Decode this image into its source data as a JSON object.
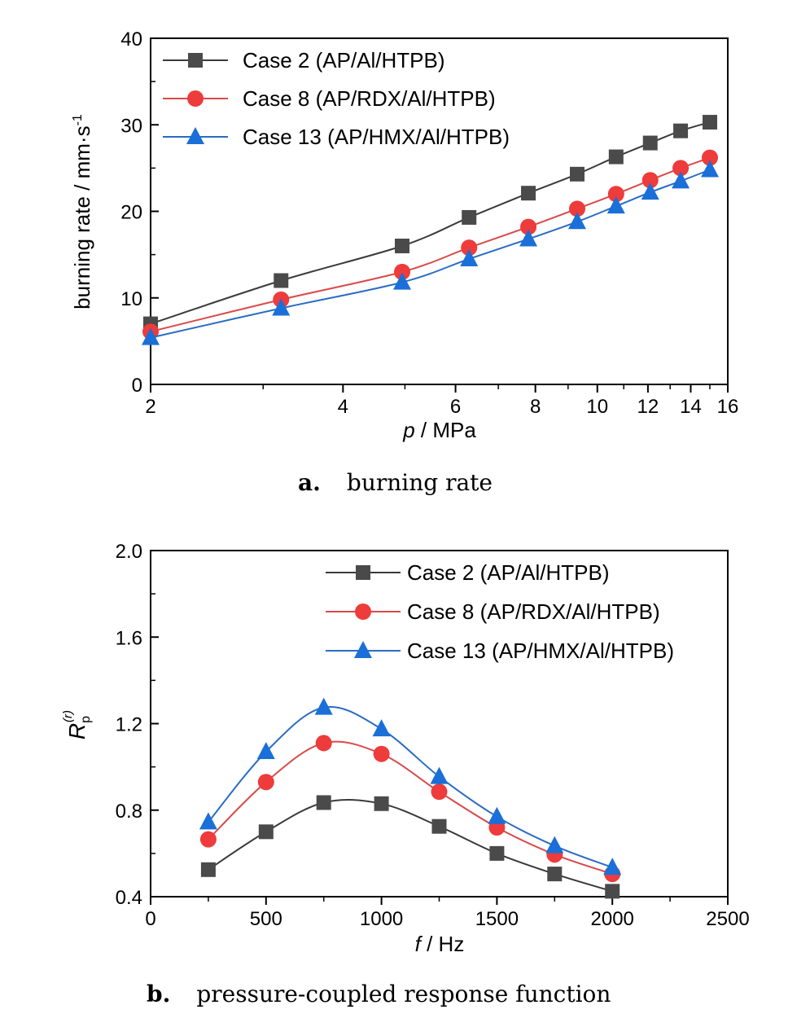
{
  "colors": {
    "case2": "#4a4a4a",
    "case8": "#ee3b3b",
    "case13": "#1a6fd8",
    "case2_line": "#3a3a3a",
    "case8_line": "#d84a4a",
    "case13_line": "#2a6cc4"
  },
  "chart_data": [
    {
      "type": "line",
      "caption_letter": "a.",
      "caption_text": "burning rate",
      "xlabel_var": "p",
      "xlabel_unit": " / MPa",
      "ylabel": "burning rate / mm·s",
      "ylabel_sup": "-1",
      "x_scale": "log",
      "xlim": [
        2,
        16
      ],
      "ylim": [
        0,
        40
      ],
      "x_ticks": [
        2,
        4,
        6,
        8,
        10,
        12,
        14,
        16
      ],
      "x_tick_labels": [
        "2",
        "4",
        "6",
        "8",
        "10",
        "12",
        "14",
        "16"
      ],
      "y_ticks": [
        0,
        10,
        20,
        30,
        40
      ],
      "y_tick_labels": [
        "0",
        "10",
        "20",
        "30",
        "40"
      ],
      "legend_position": "top-left",
      "series": [
        {
          "name": "Case 2 (AP/Al/HTPB)",
          "marker": "square",
          "color_key": "case2",
          "x": [
            2,
            3.2,
            4.95,
            6.3,
            7.8,
            9.3,
            10.7,
            12.1,
            13.5,
            15
          ],
          "y": [
            7.0,
            12.0,
            16.0,
            19.3,
            22.1,
            24.3,
            26.3,
            27.9,
            29.3,
            30.3
          ]
        },
        {
          "name": "Case 8 (AP/RDX/Al/HTPB)",
          "marker": "circle",
          "color_key": "case8",
          "x": [
            2,
            3.2,
            4.95,
            6.3,
            7.8,
            9.3,
            10.7,
            12.1,
            13.5,
            15
          ],
          "y": [
            6.1,
            9.8,
            13.0,
            15.8,
            18.2,
            20.3,
            22.0,
            23.6,
            25.0,
            26.2
          ]
        },
        {
          "name": "Case 13 (AP/HMX/Al/HTPB)",
          "marker": "triangle",
          "color_key": "case13",
          "x": [
            2,
            3.2,
            4.95,
            6.3,
            7.8,
            9.3,
            10.7,
            12.1,
            13.5,
            15
          ],
          "y": [
            5.4,
            8.8,
            11.8,
            14.5,
            16.8,
            18.8,
            20.6,
            22.2,
            23.5,
            24.8
          ]
        }
      ]
    },
    {
      "type": "line",
      "caption_letter": "b.",
      "caption_text": "pressure-coupled response function",
      "xlabel_var": "f",
      "xlabel_unit": " / Hz",
      "ylabel": "R",
      "ylabel_sub": "p",
      "ylabel_sup": "(r)",
      "x_scale": "linear",
      "xlim": [
        0,
        2500
      ],
      "ylim": [
        0.4,
        2.0
      ],
      "x_ticks": [
        0,
        500,
        1000,
        1500,
        2000,
        2500
      ],
      "x_tick_labels": [
        "0",
        "500",
        "1000",
        "1500",
        "2000",
        "2500"
      ],
      "y_ticks": [
        0.4,
        0.8,
        1.2,
        1.6,
        2.0
      ],
      "y_tick_labels": [
        "0.4",
        "0.8",
        "1.2",
        "1.6",
        "2.0"
      ],
      "legend_position": "top-right",
      "series": [
        {
          "name": "Case 2 (AP/Al/HTPB)",
          "marker": "square",
          "color_key": "case2",
          "x": [
            250,
            500,
            750,
            1000,
            1250,
            1500,
            1750,
            2000
          ],
          "y": [
            0.525,
            0.7,
            0.835,
            0.83,
            0.725,
            0.6,
            0.505,
            0.425
          ]
        },
        {
          "name": "Case 8 (AP/RDX/Al/HTPB)",
          "marker": "circle",
          "color_key": "case8",
          "x": [
            250,
            500,
            750,
            1000,
            1250,
            1500,
            1750,
            2000
          ],
          "y": [
            0.665,
            0.93,
            1.11,
            1.06,
            0.885,
            0.72,
            0.595,
            0.505
          ]
        },
        {
          "name": "Case 13 (AP/HMX/Al/HTPB)",
          "marker": "triangle",
          "color_key": "case13",
          "x": [
            250,
            500,
            750,
            1000,
            1250,
            1500,
            1750,
            2000
          ],
          "y": [
            0.745,
            1.07,
            1.275,
            1.175,
            0.955,
            0.77,
            0.635,
            0.535
          ]
        }
      ]
    }
  ]
}
